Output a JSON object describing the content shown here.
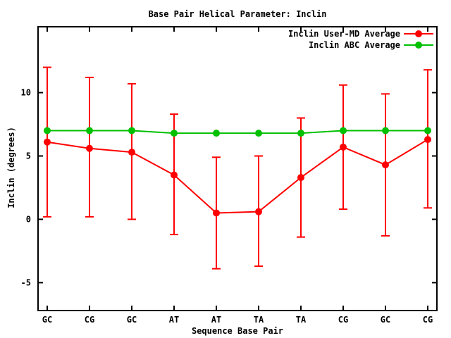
{
  "chart_data": {
    "type": "line",
    "title": "Base Pair Helical Parameter: Inclin",
    "xlabel": "Sequence Base Pair",
    "ylabel": "Inclin (degrees)",
    "categories": [
      "GC",
      "CG",
      "GC",
      "AT",
      "AT",
      "TA",
      "TA",
      "CG",
      "GC",
      "CG"
    ],
    "yticks": [
      -5,
      0,
      5,
      10
    ],
    "ylim": [
      -7.2,
      15.2
    ],
    "grid": false,
    "legend_position": "top-right-inside",
    "axis_color": "#000000",
    "background_color": "#ffffff",
    "series": [
      {
        "name": "Inclin User-MD Average",
        "color": "#ff0000",
        "marker": "filled-circle",
        "values": [
          6.1,
          5.6,
          5.3,
          3.5,
          0.5,
          0.6,
          3.3,
          5.7,
          4.3,
          6.3
        ],
        "error_top": [
          12.0,
          11.2,
          10.7,
          8.3,
          4.9,
          5.0,
          8.0,
          10.6,
          9.9,
          11.8
        ],
        "error_bottom": [
          0.2,
          0.2,
          0.0,
          -1.2,
          -3.9,
          -3.7,
          -1.4,
          0.8,
          -1.3,
          0.9
        ]
      },
      {
        "name": "Inclin ABC Average",
        "color": "#00c000",
        "marker": "filled-circle",
        "values": [
          7.0,
          7.0,
          7.0,
          6.8,
          6.8,
          6.8,
          6.8,
          7.0,
          7.0,
          7.0
        ]
      }
    ]
  }
}
